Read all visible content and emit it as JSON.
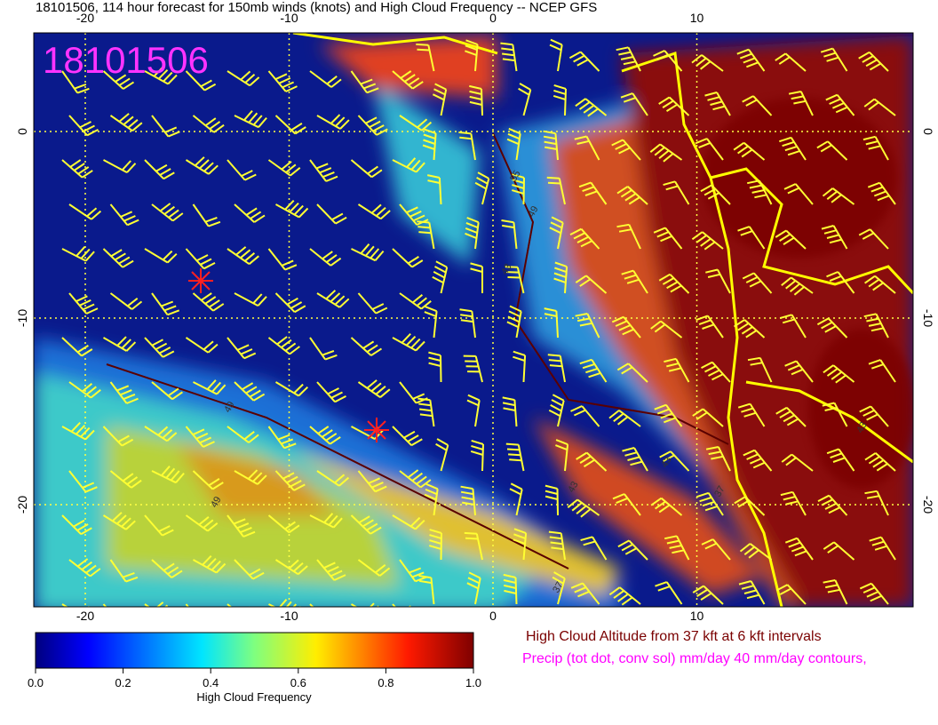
{
  "header": {
    "title": "18101506, 114 hour forecast for 150mb winds (knots) and High Cloud Frequency -- NCEP GFS"
  },
  "map": {
    "stamp": "18101506",
    "lon_ticks": [
      -20,
      -10,
      0,
      10
    ],
    "lat_ticks": [
      0,
      -10,
      -20
    ],
    "contour_labels": [
      "55",
      "49",
      "43",
      "49",
      "49",
      "43",
      "37",
      "43",
      "37",
      "43"
    ]
  },
  "colorbar": {
    "label": "High Cloud Frequency",
    "ticks": [
      {
        "value": 0,
        "label": "0.0"
      },
      {
        "value": 0.2,
        "label": "0.2"
      },
      {
        "value": 0.4,
        "label": "0.4"
      },
      {
        "value": 0.6,
        "label": "0.6"
      },
      {
        "value": 0.8,
        "label": "0.8"
      },
      {
        "value": 1,
        "label": "1.0"
      }
    ]
  },
  "legend": {
    "altitude": "High Cloud Altitude from 37 kft at 6 kft intervals",
    "precip": "Precip (tot dot, conv sol) mm/day 40 mm/day contours,"
  }
}
